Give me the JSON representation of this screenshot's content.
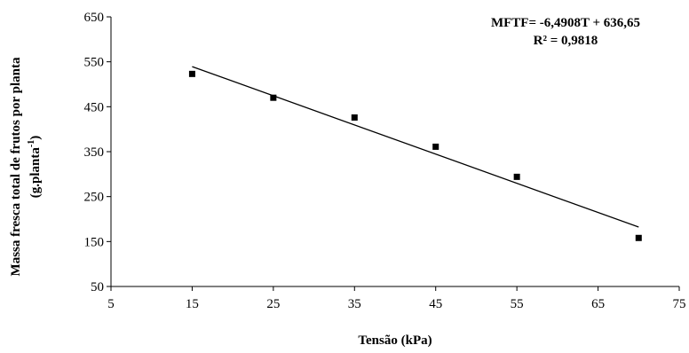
{
  "chart_data": {
    "type": "scatter",
    "title": "",
    "xlabel": "Tensão (kPa)",
    "ylabel_line1": "Massa fresca total de frutos por planta",
    "ylabel_line2": "(g.planta",
    "ylabel_sup": "-1",
    "ylabel_end": ")",
    "xlim": [
      5,
      75
    ],
    "ylim": [
      50,
      650
    ],
    "xticks": [
      5,
      15,
      25,
      35,
      45,
      55,
      65,
      75
    ],
    "yticks": [
      50,
      150,
      250,
      350,
      450,
      550,
      650
    ],
    "xtick_labels": [
      "5",
      "15",
      "25",
      "35",
      "45",
      "55",
      "65",
      "75"
    ],
    "ytick_labels": [
      "50",
      "150",
      "250",
      "350",
      "450",
      "550",
      "650"
    ],
    "points": [
      {
        "x": 15,
        "y": 523
      },
      {
        "x": 25,
        "y": 470
      },
      {
        "x": 35,
        "y": 426
      },
      {
        "x": 45,
        "y": 361
      },
      {
        "x": 55,
        "y": 294
      },
      {
        "x": 70,
        "y": 158
      }
    ],
    "trendline": {
      "slope": -6.4908,
      "intercept": 636.65,
      "x_from": 15,
      "x_to": 70
    },
    "equation": "MFTF= -6,4908T + 636,65",
    "r2": "R² = 0,9818",
    "grid": false,
    "legend": "none",
    "marker_color": "#000000",
    "line_color": "#000000"
  }
}
